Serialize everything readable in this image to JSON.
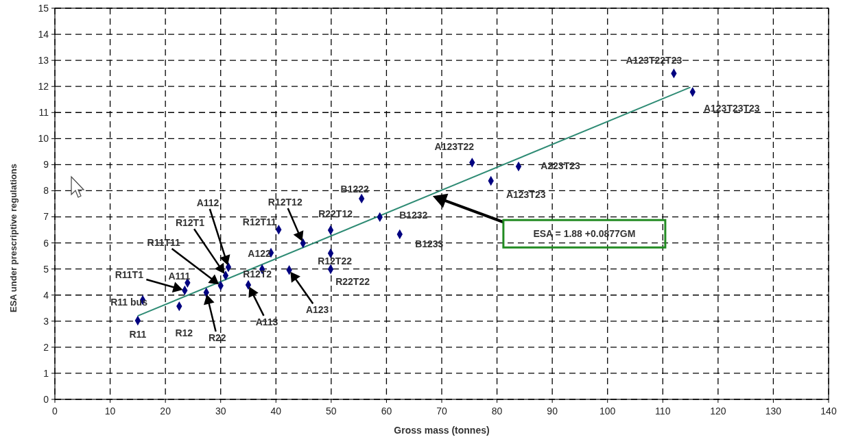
{
  "chart_data": {
    "type": "scatter",
    "xlabel": "Gross mass (tonnes)",
    "ylabel": "ESA under prescriptive regulations",
    "xlim": [
      0,
      140
    ],
    "xticks": [
      0,
      10,
      20,
      30,
      40,
      50,
      60,
      70,
      80,
      90,
      100,
      110,
      120,
      130,
      140
    ],
    "ylim": [
      0,
      15
    ],
    "yticks": [
      0,
      1,
      2,
      3,
      4,
      5,
      6,
      7,
      8,
      9,
      10,
      11,
      12,
      13,
      14,
      15
    ],
    "grid": true,
    "marker": "diamond",
    "series": [
      {
        "color": "#000080",
        "x": [
          15.0,
          15.9,
          22.5,
          23.5,
          24.0,
          27.4,
          30.0,
          30.9,
          31.4,
          35.0,
          37.5,
          39.1,
          40.5,
          44.9,
          42.4,
          49.9,
          49.9,
          49.9,
          55.5,
          58.8,
          62.4,
          75.5,
          78.9,
          83.9,
          112.0,
          115.4
        ],
        "values": [
          3.02,
          3.81,
          3.57,
          4.18,
          4.47,
          4.1,
          4.36,
          4.75,
          5.07,
          4.39,
          4.99,
          5.62,
          6.51,
          5.99,
          4.96,
          6.49,
          5.6,
          4.99,
          7.7,
          6.99,
          6.33,
          9.08,
          8.38,
          8.93,
          12.5,
          11.79
        ]
      },
      {
        "type": "line",
        "color": "#2e8b74",
        "marker": "none",
        "x": [
          15,
          115
        ],
        "values": [
          3.2,
          11.97
        ]
      }
    ],
    "annotations": [
      {
        "text": "R11",
        "x": 15.0,
        "y": 3.02
      },
      {
        "text": "R11 bus",
        "x": 15.9,
        "y": 3.81
      },
      {
        "text": "R12",
        "x": 22.5,
        "y": 3.57
      },
      "R11T1",
      {
        "text": "A111",
        "x": 24.0,
        "y": 4.47
      },
      "R22",
      "R11T11",
      "R12T1",
      "A112",
      "A113",
      {
        "text": "R12T2",
        "x": 37.5,
        "y": 4.99
      },
      {
        "text": "A122",
        "x": 39.1,
        "y": 5.62
      },
      {
        "text": "R12T11",
        "x": 40.5,
        "y": 6.51
      },
      "R12T12",
      "A123",
      {
        "text": "R22T12",
        "x": 49.9,
        "y": 6.49
      },
      {
        "text": "R12T22",
        "x": 49.9,
        "y": 5.6
      },
      {
        "text": "R22T22",
        "x": 49.9,
        "y": 4.99
      },
      {
        "text": "B1222",
        "x": 55.5,
        "y": 7.7
      },
      {
        "text": "B1232",
        "x": 58.8,
        "y": 6.99
      },
      {
        "text": "B1233",
        "x": 62.4,
        "y": 6.33
      },
      {
        "text": "A123T22",
        "x": 75.5,
        "y": 9.08
      },
      {
        "text": "A123T23",
        "x": 78.9,
        "y": 8.38
      },
      {
        "text": "A223T23",
        "x": 83.9,
        "y": 8.93
      },
      {
        "text": "A123T22T23",
        "x": 112.0,
        "y": 12.5
      },
      {
        "text": "A123T23T23",
        "x": 115.4,
        "y": 11.79
      },
      "ESA = 1.88 +0.0877GM"
    ]
  }
}
